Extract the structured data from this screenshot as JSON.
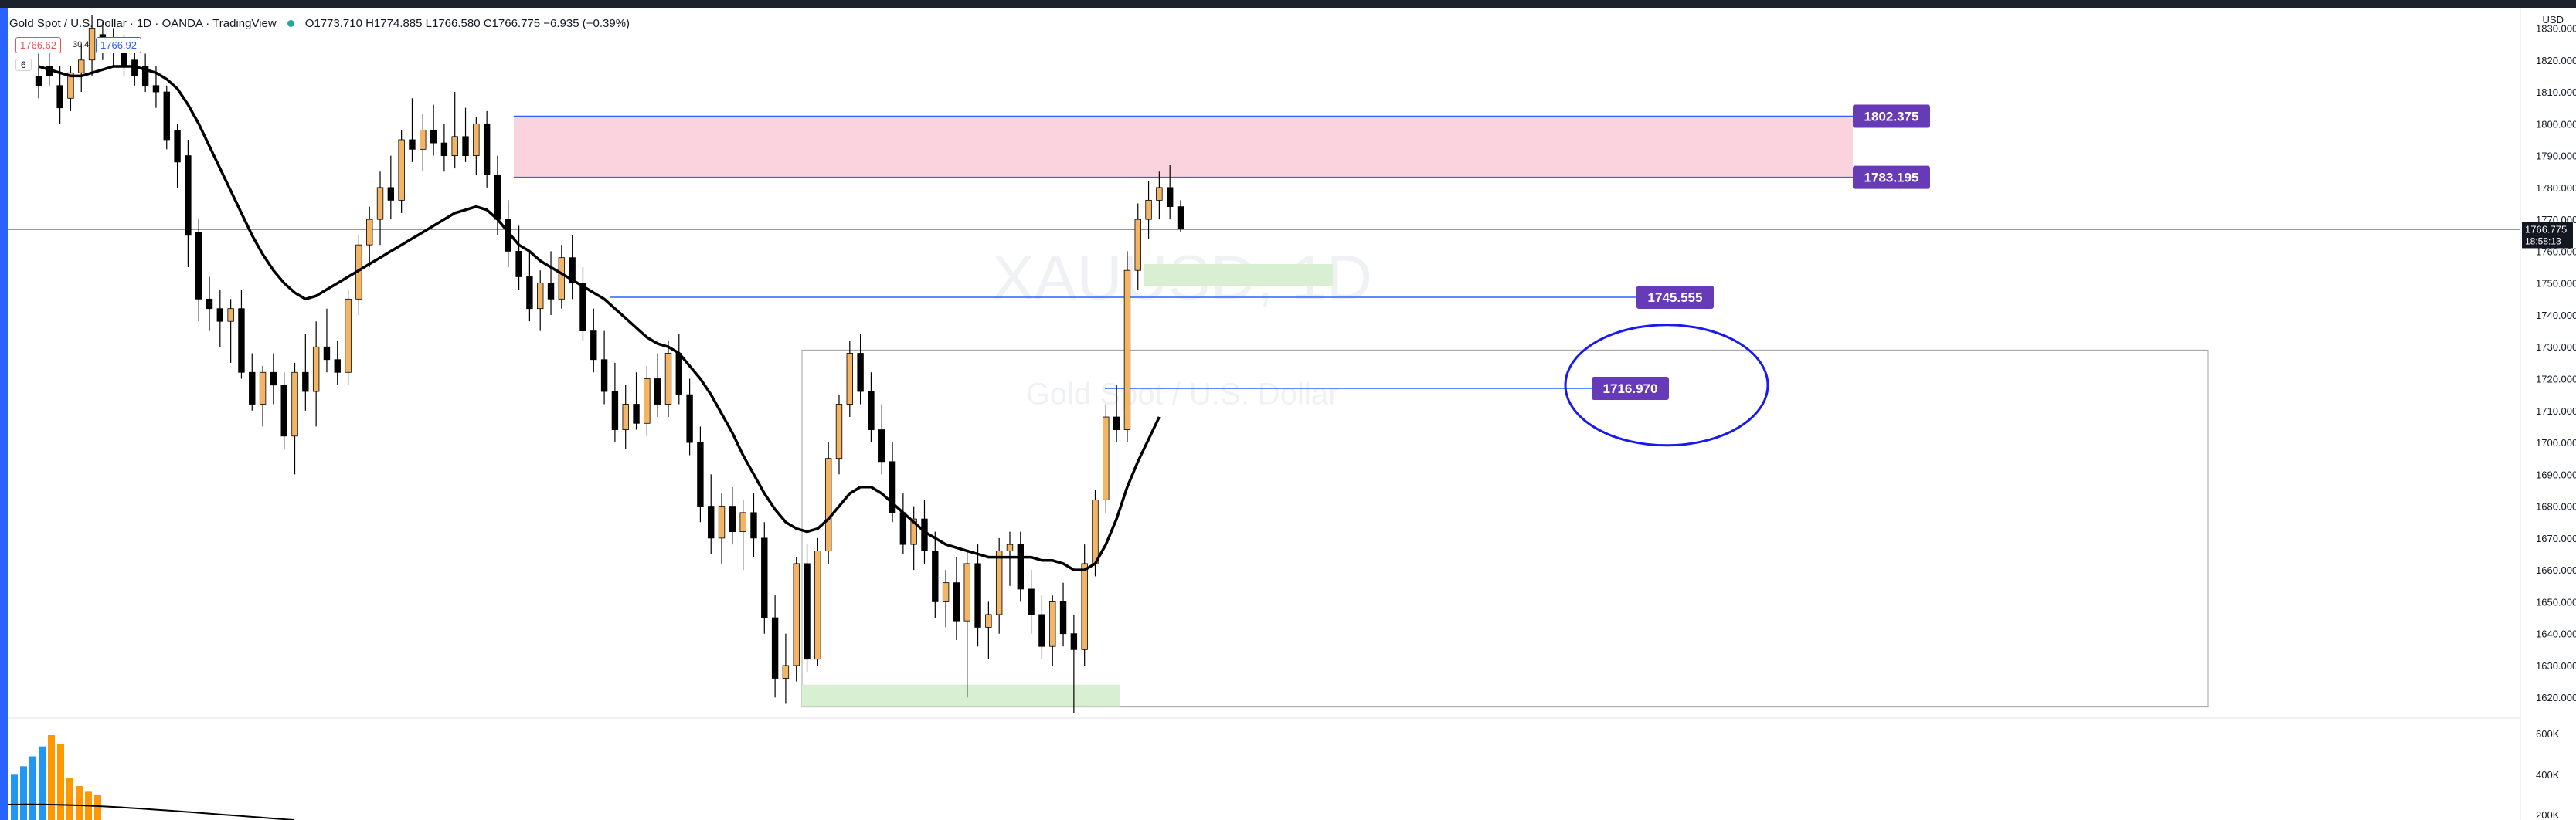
{
  "header": {
    "symbol": "Gold Spot / U.S. Dollar · 1D · OANDA · TradingView",
    "ohlc": "O1773.710 H1774.885 L1766.580 C1766.775 −6.935 (−0.39%)",
    "bid": "1766.62",
    "spread": "30.4",
    "ask": "1766.92",
    "indicator_toggle": "6"
  },
  "axis": {
    "currency": "USD"
  },
  "watermark": {
    "symbol": "XAUUSD, 1D",
    "description": "Gold Spot / U.S. Dollar"
  },
  "colors": {
    "up_candle": "#f3b564",
    "down_candle": "#000000",
    "ma_line": "#000000",
    "supply_zone": "#fbd3df",
    "demand_zone": "#d9efd2",
    "level_line": "#2962ff",
    "label_bg": "#673ab7",
    "volume_up": "#ff9800",
    "volume_down": "#2196f3"
  },
  "chart_data": {
    "type": "candlestick",
    "symbol": "XAUUSD",
    "timeframe": "1D",
    "ylim": [
      1614,
      1834
    ],
    "y_ticks": [
      1830,
      1820,
      1810,
      1800,
      1790,
      1780,
      1770,
      1760,
      1750,
      1740,
      1730,
      1720,
      1710,
      1700,
      1690,
      1680,
      1670,
      1660,
      1650,
      1640,
      1630,
      1620
    ],
    "last_price": "1766.775",
    "countdown": "18:58:13",
    "candles": [
      [
        1815,
        1822,
        1808,
        1812
      ],
      [
        1818,
        1826,
        1812,
        1815
      ],
      [
        1812,
        1818,
        1800,
        1805
      ],
      [
        1808,
        1818,
        1804,
        1816
      ],
      [
        1816,
        1825,
        1810,
        1820
      ],
      [
        1820,
        1834,
        1815,
        1830
      ],
      [
        1828,
        1832,
        1820,
        1824
      ],
      [
        1824,
        1830,
        1818,
        1826
      ],
      [
        1824,
        1828,
        1815,
        1818
      ],
      [
        1820,
        1825,
        1812,
        1815
      ],
      [
        1818,
        1822,
        1810,
        1812
      ],
      [
        1812,
        1818,
        1805,
        1810
      ],
      [
        1810,
        1812,
        1792,
        1795
      ],
      [
        1798,
        1800,
        1780,
        1788
      ],
      [
        1790,
        1795,
        1755,
        1765
      ],
      [
        1766,
        1770,
        1738,
        1745
      ],
      [
        1745,
        1752,
        1735,
        1742
      ],
      [
        1742,
        1748,
        1730,
        1738
      ],
      [
        1738,
        1745,
        1725,
        1742
      ],
      [
        1742,
        1748,
        1720,
        1722
      ],
      [
        1722,
        1728,
        1710,
        1712
      ],
      [
        1712,
        1724,
        1705,
        1722
      ],
      [
        1722,
        1728,
        1712,
        1718
      ],
      [
        1718,
        1722,
        1698,
        1702
      ],
      [
        1702,
        1725,
        1690,
        1722
      ],
      [
        1722,
        1734,
        1710,
        1716
      ],
      [
        1716,
        1738,
        1705,
        1730
      ],
      [
        1730,
        1742,
        1722,
        1726
      ],
      [
        1726,
        1732,
        1718,
        1722
      ],
      [
        1722,
        1748,
        1718,
        1745
      ],
      [
        1745,
        1765,
        1740,
        1762
      ],
      [
        1762,
        1774,
        1755,
        1770
      ],
      [
        1770,
        1785,
        1762,
        1780
      ],
      [
        1780,
        1790,
        1770,
        1776
      ],
      [
        1776,
        1798,
        1772,
        1795
      ],
      [
        1795,
        1808,
        1788,
        1792
      ],
      [
        1792,
        1803,
        1785,
        1798
      ],
      [
        1798,
        1806,
        1790,
        1794
      ],
      [
        1794,
        1800,
        1785,
        1790
      ],
      [
        1790,
        1810,
        1786,
        1796
      ],
      [
        1796,
        1805,
        1788,
        1790
      ],
      [
        1790,
        1802,
        1784,
        1800
      ],
      [
        1800,
        1804,
        1780,
        1784
      ],
      [
        1784,
        1790,
        1765,
        1770
      ],
      [
        1770,
        1776,
        1755,
        1760
      ],
      [
        1760,
        1768,
        1748,
        1752
      ],
      [
        1752,
        1760,
        1738,
        1742
      ],
      [
        1742,
        1754,
        1735,
        1750
      ],
      [
        1750,
        1760,
        1740,
        1745
      ],
      [
        1745,
        1762,
        1742,
        1758
      ],
      [
        1758,
        1765,
        1745,
        1750
      ],
      [
        1750,
        1755,
        1732,
        1735
      ],
      [
        1735,
        1742,
        1722,
        1726
      ],
      [
        1726,
        1735,
        1712,
        1716
      ],
      [
        1716,
        1725,
        1700,
        1704
      ],
      [
        1704,
        1718,
        1698,
        1712
      ],
      [
        1712,
        1722,
        1704,
        1706
      ],
      [
        1706,
        1724,
        1702,
        1720
      ],
      [
        1720,
        1728,
        1708,
        1712
      ],
      [
        1712,
        1732,
        1708,
        1728
      ],
      [
        1728,
        1734,
        1712,
        1715
      ],
      [
        1715,
        1720,
        1696,
        1700
      ],
      [
        1700,
        1705,
        1675,
        1680
      ],
      [
        1680,
        1690,
        1665,
        1670
      ],
      [
        1670,
        1684,
        1662,
        1680
      ],
      [
        1680,
        1686,
        1668,
        1672
      ],
      [
        1672,
        1682,
        1660,
        1678
      ],
      [
        1678,
        1684,
        1664,
        1670
      ],
      [
        1670,
        1675,
        1640,
        1645
      ],
      [
        1645,
        1652,
        1620,
        1626
      ],
      [
        1626,
        1640,
        1618,
        1630
      ],
      [
        1630,
        1664,
        1625,
        1662
      ],
      [
        1662,
        1668,
        1628,
        1632
      ],
      [
        1632,
        1670,
        1630,
        1666
      ],
      [
        1666,
        1700,
        1662,
        1695
      ],
      [
        1695,
        1715,
        1690,
        1712
      ],
      [
        1712,
        1732,
        1708,
        1728
      ],
      [
        1728,
        1734,
        1712,
        1716
      ],
      [
        1716,
        1722,
        1700,
        1704
      ],
      [
        1704,
        1712,
        1690,
        1694
      ],
      [
        1694,
        1700,
        1675,
        1678
      ],
      [
        1678,
        1684,
        1665,
        1668
      ],
      [
        1668,
        1680,
        1660,
        1676
      ],
      [
        1676,
        1682,
        1662,
        1666
      ],
      [
        1666,
        1672,
        1645,
        1650
      ],
      [
        1650,
        1660,
        1642,
        1656
      ],
      [
        1656,
        1664,
        1638,
        1644
      ],
      [
        1644,
        1666,
        1620,
        1662
      ],
      [
        1662,
        1668,
        1636,
        1642
      ],
      [
        1642,
        1650,
        1632,
        1646
      ],
      [
        1646,
        1670,
        1640,
        1666
      ],
      [
        1666,
        1672,
        1655,
        1668
      ],
      [
        1668,
        1672,
        1650,
        1654
      ],
      [
        1654,
        1660,
        1640,
        1646
      ],
      [
        1646,
        1652,
        1632,
        1636
      ],
      [
        1636,
        1652,
        1630,
        1650
      ],
      [
        1650,
        1656,
        1636,
        1640
      ],
      [
        1640,
        1646,
        1615,
        1635
      ],
      [
        1635,
        1668,
        1630,
        1662
      ],
      [
        1662,
        1685,
        1658,
        1682
      ],
      [
        1682,
        1712,
        1678,
        1708
      ],
      [
        1708,
        1718,
        1700,
        1704
      ],
      [
        1704,
        1760,
        1700,
        1754
      ],
      [
        1754,
        1775,
        1748,
        1770
      ],
      [
        1770,
        1782,
        1764,
        1776
      ],
      [
        1776,
        1785,
        1770,
        1780
      ],
      [
        1780,
        1787,
        1770,
        1774
      ],
      [
        1774,
        1776,
        1766,
        1767
      ]
    ],
    "moving_average": [
      1818,
      1817,
      1816,
      1815,
      1815,
      1816,
      1817,
      1818,
      1818,
      1818,
      1817,
      1816,
      1814,
      1811,
      1806,
      1800,
      1793,
      1786,
      1779,
      1772,
      1765,
      1759,
      1754,
      1750,
      1747,
      1745,
      1746,
      1748,
      1750,
      1752,
      1754,
      1756,
      1758,
      1760,
      1762,
      1764,
      1766,
      1768,
      1770,
      1772,
      1773,
      1774,
      1773,
      1770,
      1766,
      1762,
      1760,
      1757,
      1755,
      1753,
      1751,
      1749,
      1747,
      1745,
      1742,
      1739,
      1736,
      1733,
      1731,
      1730,
      1728,
      1724,
      1720,
      1715,
      1709,
      1703,
      1696,
      1690,
      1684,
      1679,
      1675,
      1673,
      1672,
      1673,
      1676,
      1680,
      1684,
      1686,
      1686,
      1684,
      1681,
      1678,
      1675,
      1672,
      1670,
      1668,
      1667,
      1666,
      1665,
      1664,
      1664,
      1664,
      1664,
      1664,
      1663,
      1663,
      1662,
      1660,
      1660,
      1662,
      1668,
      1676,
      1686,
      1694,
      1701,
      1708
    ],
    "zones": [
      {
        "type": "supply",
        "top": 1802.375,
        "bottom": 1783.195
      },
      {
        "type": "demand",
        "top": 1756,
        "bottom": 1749
      },
      {
        "type": "demand",
        "top": 1624,
        "bottom": 1617
      }
    ],
    "levels": [
      {
        "price": 1802.375,
        "label": "1802.375"
      },
      {
        "price": 1783.195,
        "label": "1783.195"
      },
      {
        "price": 1745.555,
        "label": "1745.555"
      },
      {
        "price": 1716.97,
        "label": "1716.970"
      }
    ],
    "range_box": {
      "top": 1729,
      "bottom": 1617
    },
    "volume_ticks": [
      "600K",
      "400K",
      "200K"
    ],
    "volume": [
      320,
      380,
      450,
      520,
      600,
      540,
      300,
      240,
      200,
      180
    ]
  }
}
